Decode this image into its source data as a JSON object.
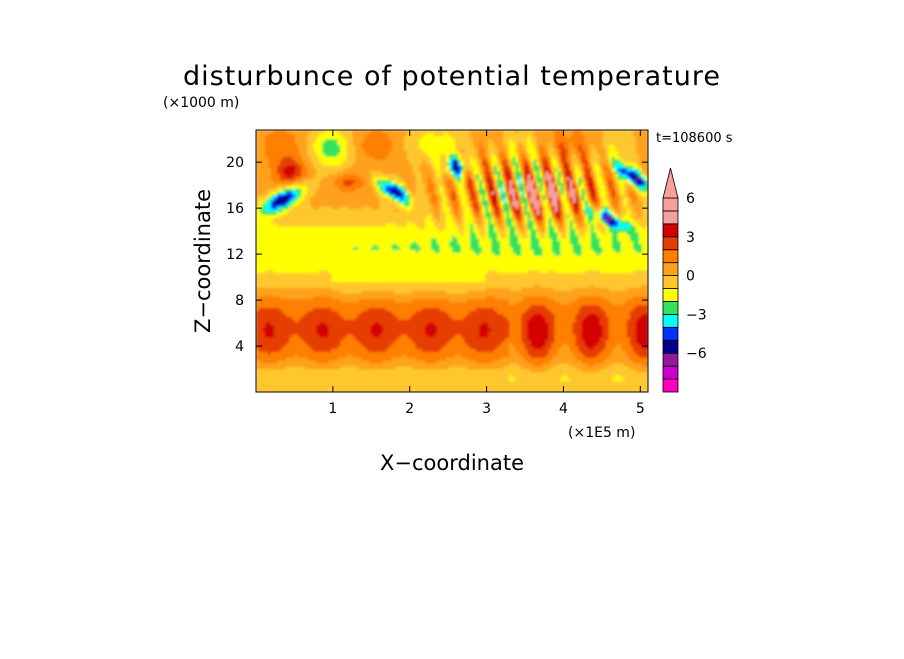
{
  "chart_data": {
    "type": "heatmap",
    "title": "disturbunce of potential temperature",
    "y_unit_label": "(×1000 m)",
    "x_unit_label": "(×1E5 m)",
    "xlabel": "X−coordinate",
    "ylabel": "Z−coordinate",
    "time_label": "t=108600 s",
    "x_ticks": [
      "1",
      "2",
      "3",
      "4",
      "5"
    ],
    "x_tick_values": [
      1,
      2,
      3,
      4,
      5
    ],
    "y_ticks": [
      "4",
      "8",
      "12",
      "16",
      "20"
    ],
    "y_tick_values": [
      4,
      8,
      12,
      16,
      20
    ],
    "xlim": [
      0,
      5.1
    ],
    "ylim": [
      0,
      22.8
    ],
    "colorbar": {
      "tick_labels": [
        "6",
        "3",
        "0",
        "−3",
        "−6"
      ],
      "tick_values": [
        6,
        3,
        0,
        -3,
        -6
      ],
      "levels": [
        -9,
        -8,
        -7,
        -6,
        -5,
        -4,
        -3,
        -2,
        -1,
        0,
        1,
        2,
        3,
        4,
        5,
        6,
        7,
        8
      ],
      "colors": [
        "#ff00bf",
        "#cc00cc",
        "#8f1aa0",
        "#00008c",
        "#0033ff",
        "#00ffff",
        "#33e35c",
        "#ffff00",
        "#ffc72e",
        "#ffa11e",
        "#ff7f00",
        "#e63d00",
        "#d40000",
        "#f5a09b",
        "#f5a09b"
      ],
      "extend": "max"
    },
    "field_description_points": [
      {
        "x": 0.3,
        "z": 17.0,
        "v": -4
      },
      {
        "x": 0.45,
        "z": 19.3,
        "v": 3
      },
      {
        "x": 1.75,
        "z": 17.6,
        "v": -4
      },
      {
        "x": 2.6,
        "z": 19.5,
        "v": -5
      },
      {
        "x": 2.95,
        "z": 19.8,
        "v": -4
      },
      {
        "x": 3.75,
        "z": 16.5,
        "v": 5
      },
      {
        "x": 4.85,
        "z": 18.8,
        "v": -5
      },
      {
        "x": 4.6,
        "z": 15.2,
        "v": -4
      },
      {
        "x": 2.0,
        "z": 13.3,
        "v": -2
      },
      {
        "x": 1.5,
        "z": 9.3,
        "v": 0
      },
      {
        "x": 2.5,
        "z": 6.0,
        "v": 2
      },
      {
        "x": 4.2,
        "z": 4.0,
        "v": 3
      },
      {
        "x": 1.0,
        "z": 1.5,
        "v": 1
      }
    ]
  }
}
